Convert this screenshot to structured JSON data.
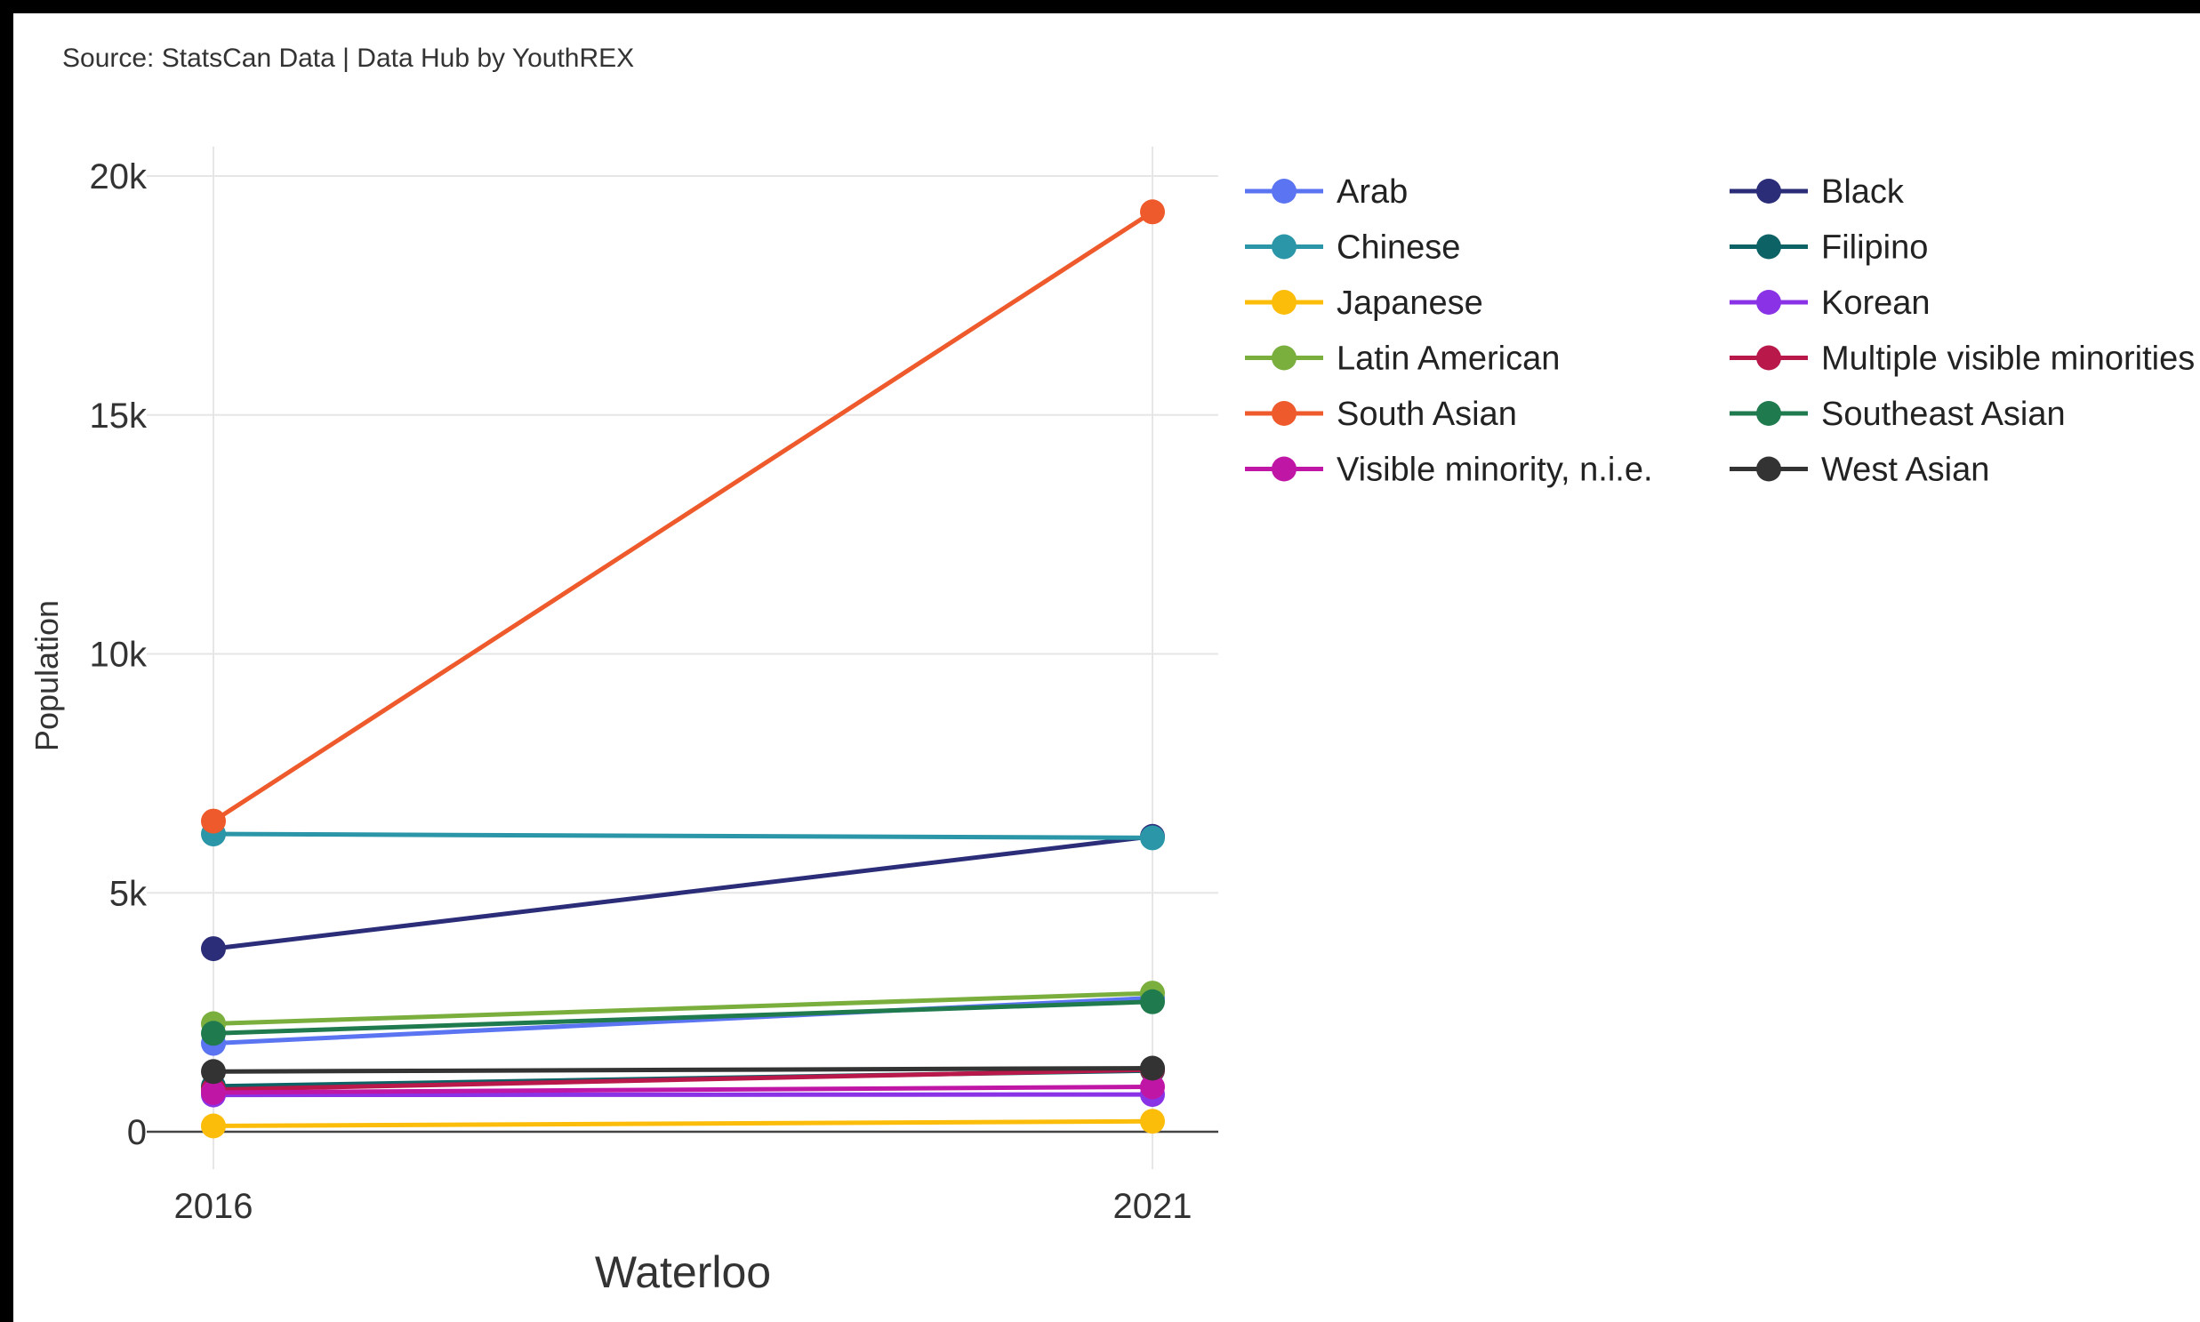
{
  "source_note": "Source: StatsCan Data | Data Hub by YouthREX",
  "chart_data": {
    "type": "line",
    "title": "",
    "xlabel": "Waterloo",
    "ylabel": "Population",
    "x": [
      "2016",
      "2021"
    ],
    "ylim": [
      -2000,
      20500
    ],
    "yticks": [
      0,
      5000,
      10000,
      15000,
      20000
    ],
    "ytick_labels": [
      "0",
      "5k",
      "10k",
      "15k",
      "20k"
    ],
    "grid": true,
    "legend_position": "right",
    "series": [
      {
        "name": "Arab",
        "color": "#5b74f2",
        "values": [
          1850,
          2800
        ]
      },
      {
        "name": "Black",
        "color": "#2b2d78",
        "values": [
          3830,
          6180
        ]
      },
      {
        "name": "Chinese",
        "color": "#2b96a8",
        "values": [
          6230,
          6150
        ]
      },
      {
        "name": "Filipino",
        "color": "#0d6266",
        "values": [
          950,
          1280
        ]
      },
      {
        "name": "Japanese",
        "color": "#fbbd0a",
        "values": [
          120,
          220
        ]
      },
      {
        "name": "Korean",
        "color": "#8a33e6",
        "values": [
          770,
          780
        ]
      },
      {
        "name": "Latin American",
        "color": "#7aaf3e",
        "values": [
          2260,
          2900
        ]
      },
      {
        "name": "Multiple visible minorities",
        "color": "#b8184a",
        "values": [
          880,
          1300
        ]
      },
      {
        "name": "South Asian",
        "color": "#ee5a2c",
        "values": [
          6500,
          19250
        ]
      },
      {
        "name": "Southeast Asian",
        "color": "#1f7a4e",
        "values": [
          2060,
          2720
        ]
      },
      {
        "name": "Visible minority, n.i.e.",
        "color": "#c016a6",
        "values": [
          820,
          940
        ]
      },
      {
        "name": "West Asian",
        "color": "#333333",
        "values": [
          1260,
          1330
        ]
      }
    ]
  }
}
